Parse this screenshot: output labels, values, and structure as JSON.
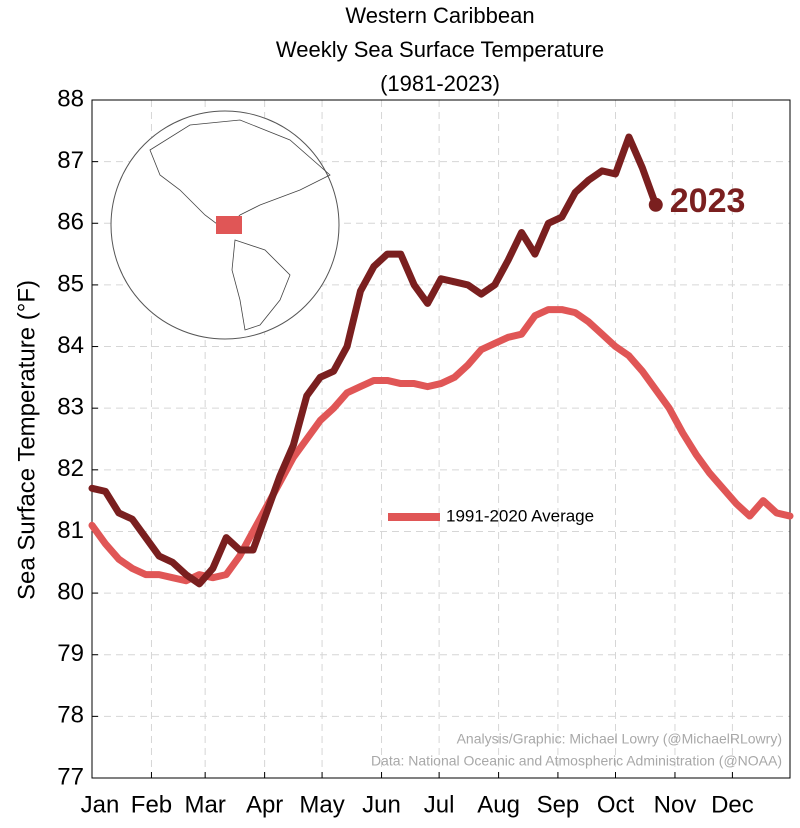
{
  "chart_data": {
    "type": "line",
    "title": "Western Caribbean",
    "subtitle": "Weekly Sea Surface Temperature",
    "period": "(1981-2023)",
    "y_label": "Sea Surface Temperature (°F)",
    "credits": [
      "Analysis/Graphic: Michael Lowry (@MichaelRLowry)",
      "Data: National Oceanic and Atmospheric Administration (@NOAA)"
    ],
    "xlim": [
      0,
      52
    ],
    "xticks": [
      {
        "value": 0,
        "label": "Jan"
      },
      {
        "value": 4.43,
        "label": "Feb"
      },
      {
        "value": 8.43,
        "label": "Mar"
      },
      {
        "value": 12.86,
        "label": "Apr"
      },
      {
        "value": 17.14,
        "label": "May"
      },
      {
        "value": 21.57,
        "label": "Jun"
      },
      {
        "value": 25.86,
        "label": "Jul"
      },
      {
        "value": 30.29,
        "label": "Aug"
      },
      {
        "value": 34.71,
        "label": "Sep"
      },
      {
        "value": 39,
        "label": "Oct"
      },
      {
        "value": 43.43,
        "label": "Nov"
      },
      {
        "value": 47.71,
        "label": "Dec"
      }
    ],
    "ylim": [
      77,
      88
    ],
    "yticks": [
      77,
      78,
      79,
      80,
      81,
      82,
      83,
      84,
      85,
      86,
      87,
      88
    ],
    "grid": true,
    "legend": "center",
    "series": [
      {
        "name": "1991-2020 Average",
        "color": "#e05656",
        "x": [
          0,
          1,
          2,
          3,
          4,
          5,
          6,
          7,
          8,
          9,
          10,
          11,
          12,
          13,
          14,
          15,
          16,
          17,
          18,
          19,
          20,
          21,
          22,
          23,
          24,
          25,
          26,
          27,
          28,
          29,
          30,
          31,
          32,
          33,
          34,
          35,
          36,
          37,
          38,
          39,
          40,
          41,
          42,
          43,
          44,
          45,
          46,
          47,
          48,
          49,
          50,
          51,
          52
        ],
        "values": [
          81.1,
          80.8,
          80.55,
          80.4,
          80.3,
          80.3,
          80.25,
          80.2,
          80.3,
          80.25,
          80.3,
          80.6,
          81.0,
          81.4,
          81.8,
          82.2,
          82.5,
          82.8,
          83.0,
          83.25,
          83.35,
          83.45,
          83.45,
          83.4,
          83.4,
          83.35,
          83.4,
          83.5,
          83.7,
          83.95,
          84.05,
          84.15,
          84.2,
          84.5,
          84.6,
          84.6,
          84.55,
          84.4,
          84.2,
          84.0,
          83.85,
          83.6,
          83.3,
          83.0,
          82.6,
          82.25,
          81.95,
          81.7,
          81.45,
          81.25,
          81.5,
          81.3,
          81.25
        ]
      },
      {
        "name": "2023",
        "color": "#7a1f1f",
        "x": [
          0,
          1,
          2,
          3,
          4,
          5,
          6,
          7,
          8,
          9,
          10,
          11,
          12,
          13,
          14,
          15,
          16,
          17,
          18,
          19,
          20,
          21,
          22,
          23,
          24,
          25,
          26,
          27,
          28,
          29,
          30,
          31,
          32,
          33,
          34,
          35,
          36,
          37,
          38,
          39,
          40,
          41,
          42
        ],
        "values": [
          81.7,
          81.65,
          81.3,
          81.2,
          80.9,
          80.6,
          80.5,
          80.3,
          80.15,
          80.4,
          80.9,
          80.7,
          80.7,
          81.3,
          81.9,
          82.4,
          83.2,
          83.5,
          83.6,
          84.0,
          84.9,
          85.3,
          85.5,
          85.5,
          85.0,
          84.7,
          85.1,
          85.05,
          85.0,
          84.85,
          85.0,
          85.4,
          85.85,
          85.5,
          86.0,
          86.1,
          86.5,
          86.7,
          86.85,
          86.8,
          87.4,
          86.9,
          86.3
        ]
      }
    ]
  }
}
